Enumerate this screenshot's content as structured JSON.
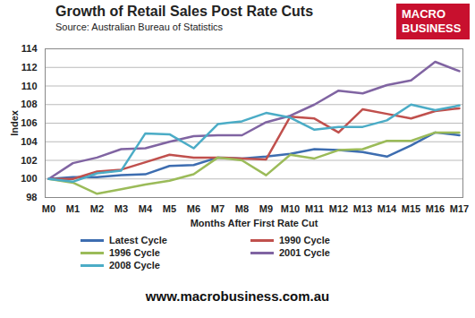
{
  "chart_data": {
    "type": "line",
    "title": "Growth of Retail Sales Post Rate Cuts",
    "subtitle": "Source: Australian Bureau of Statistics",
    "logo": [
      "MACRO",
      "BUSINESS"
    ],
    "footer": "www.macrobusiness.com.au",
    "x_label": "Months After First Rate Cut",
    "y_label": "Index",
    "categories": [
      "M0",
      "M1",
      "M2",
      "M3",
      "M4",
      "M5",
      "M6",
      "M7",
      "M8",
      "M9",
      "M10",
      "M11",
      "M12",
      "M13",
      "M14",
      "M15",
      "M16",
      "M17"
    ],
    "series": [
      {
        "name": "Latest Cycle",
        "color": "#3d6db0",
        "values": [
          100,
          100.2,
          100.2,
          100.4,
          100.5,
          101.4,
          101.5,
          102.3,
          102.2,
          102.4,
          102.7,
          103.2,
          103.1,
          102.9,
          102.4,
          103.6,
          105.0,
          104.7
        ]
      },
      {
        "name": "1990 Cycle",
        "color": "#c0504d",
        "values": [
          100,
          100.0,
          100.8,
          101.0,
          101.8,
          102.6,
          102.3,
          102.3,
          102.2,
          102.1,
          106.7,
          106.5,
          105.0,
          107.5,
          107.0,
          106.5,
          107.3,
          107.6
        ]
      },
      {
        "name": "1996 Cycle",
        "color": "#9bbb59",
        "values": [
          100,
          99.6,
          98.4,
          98.9,
          99.4,
          99.8,
          100.5,
          102.3,
          102.0,
          100.4,
          102.6,
          102.2,
          103.1,
          103.2,
          104.1,
          104.1,
          105.0,
          105.0
        ]
      },
      {
        "name": "2001 Cycle",
        "color": "#8064a2",
        "values": [
          100,
          101.7,
          102.3,
          103.2,
          103.3,
          104.0,
          104.6,
          104.7,
          104.7,
          106.1,
          106.8,
          108.0,
          109.5,
          109.2,
          110.1,
          110.6,
          112.6,
          111.6
        ]
      },
      {
        "name": "2008 Cycle",
        "color": "#4bacc6",
        "values": [
          100,
          99.7,
          100.6,
          100.9,
          104.9,
          104.8,
          103.3,
          105.9,
          106.2,
          107.1,
          106.6,
          105.3,
          105.6,
          105.6,
          106.3,
          108.0,
          107.4,
          107.9
        ]
      }
    ],
    "ylim": [
      98,
      114
    ],
    "yticks": [
      98,
      100,
      102,
      104,
      106,
      108,
      110,
      112,
      114
    ],
    "grid": true,
    "legend": "bottom"
  }
}
